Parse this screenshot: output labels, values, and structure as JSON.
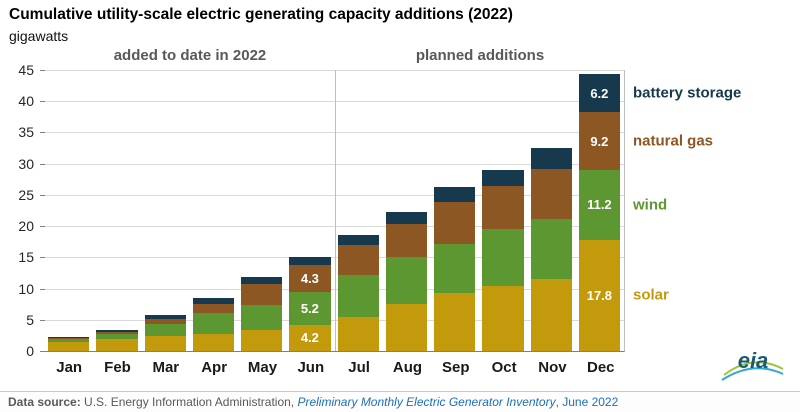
{
  "footer": {
    "prefix": "Data source: ",
    "agency": "U.S. Energy Information Administration, ",
    "source_title": "Preliminary Monthly Electric Generator Inventory",
    "date": ", June 2022"
  },
  "logo": {
    "text": "eia"
  },
  "sections": {
    "left": "added to date in 2022",
    "right": "planned additions"
  },
  "chart_data": {
    "type": "bar",
    "stacked": true,
    "title": "Cumulative utility-scale electric generating capacity additions (2022)",
    "ylabel": "gigawatts",
    "xlabel": "",
    "ylim": [
      0,
      45
    ],
    "yticks": [
      0,
      5,
      10,
      15,
      20,
      25,
      30,
      35,
      40,
      45
    ],
    "grid": true,
    "legend_position": "right",
    "divider_index": 6,
    "categories": [
      "Jan",
      "Feb",
      "Mar",
      "Apr",
      "May",
      "Jun",
      "Jul",
      "Aug",
      "Sep",
      "Oct",
      "Nov",
      "Dec"
    ],
    "series": [
      {
        "name": "solar",
        "color": "#C49A0D",
        "values": [
          1.5,
          1.9,
          2.4,
          2.8,
          3.3,
          4.2,
          5.5,
          7.6,
          9.3,
          10.4,
          11.6,
          17.8
        ],
        "labels": {
          "Jun": "4.2",
          "Dec": "17.8"
        }
      },
      {
        "name": "wind",
        "color": "#5D9732",
        "values": [
          0.4,
          0.9,
          1.9,
          3.3,
          4.1,
          5.2,
          6.6,
          7.4,
          7.9,
          9.1,
          9.6,
          11.2
        ],
        "labels": {
          "Jun": "5.2",
          "Dec": "11.2"
        }
      },
      {
        "name": "natural gas",
        "color": "#8C5723",
        "values": [
          0.2,
          0.3,
          0.9,
          1.5,
          3.4,
          4.3,
          4.9,
          5.4,
          6.7,
          6.9,
          8.0,
          9.2
        ],
        "labels": {
          "Jun": "4.3",
          "Dec": "9.2"
        }
      },
      {
        "name": "battery storage",
        "color": "#17394D",
        "values": [
          0.2,
          0.3,
          0.5,
          0.9,
          1.0,
          1.3,
          1.6,
          1.9,
          2.3,
          2.6,
          3.3,
          6.2
        ],
        "labels": {
          "Dec": "6.2"
        }
      }
    ]
  }
}
